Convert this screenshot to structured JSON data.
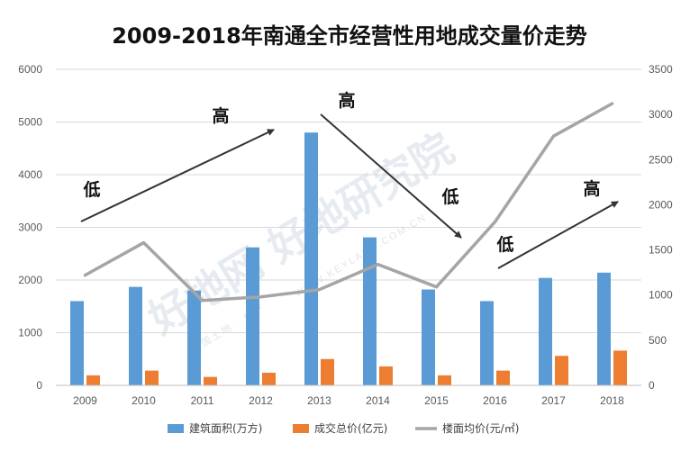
{
  "chart_data": {
    "type": "bar",
    "title": "2009-2018年南通全市经营性用地成交量价走势",
    "categories": [
      "2009",
      "2010",
      "2011",
      "2012",
      "2013",
      "2014",
      "2015",
      "2016",
      "2017",
      "2018"
    ],
    "series": [
      {
        "name": "建筑面积(万方)",
        "type": "bar",
        "axis": "left",
        "color": "#5B9BD5",
        "values": [
          1600,
          1870,
          1800,
          2620,
          4800,
          2810,
          1820,
          1600,
          2040,
          2140
        ]
      },
      {
        "name": "成交总价(亿元)",
        "type": "bar",
        "axis": "left",
        "color": "#ED7D31",
        "values": [
          190,
          280,
          160,
          240,
          500,
          360,
          190,
          280,
          560,
          660
        ]
      },
      {
        "name": "楼面均价(元/㎡)",
        "type": "line",
        "axis": "right",
        "color": "#A5A5A5",
        "values": [
          1220,
          1580,
          940,
          980,
          1060,
          1340,
          1090,
          1810,
          2760,
          3120
        ]
      }
    ],
    "y_left": {
      "min": 0,
      "max": 6000,
      "ticks": [
        "0",
        "1000",
        "2000",
        "3000",
        "4000",
        "5000",
        "6000"
      ]
    },
    "y_right": {
      "min": 0,
      "max": 3500,
      "ticks": [
        "0",
        "500",
        "1000",
        "1500",
        "2000",
        "2500",
        "3000",
        "3500"
      ]
    },
    "grid": true,
    "legend_position": "bottom",
    "annotations": [
      {
        "text": "低",
        "arrow": "up"
      },
      {
        "text": "高",
        "arrow": "up"
      },
      {
        "text": "高",
        "arrow": "down"
      },
      {
        "text": "低",
        "arrow": "down"
      },
      {
        "text": "低",
        "arrow": "up"
      },
      {
        "text": "高",
        "arrow": "up"
      }
    ],
    "watermark": {
      "main": "好地网 好地研究院",
      "sub": "WWW.KEYLAND.COM.CN",
      "small": "中国土地 · 房产"
    }
  }
}
